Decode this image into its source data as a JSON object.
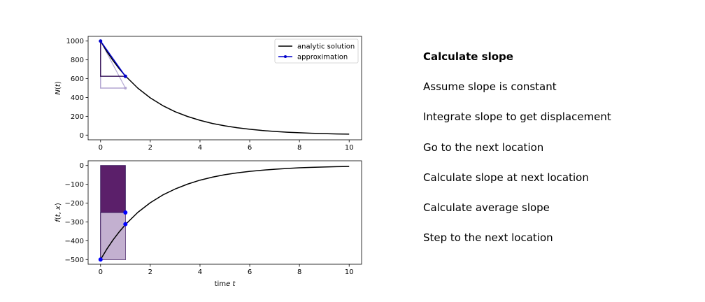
{
  "chart_data": [
    {
      "type": "line",
      "title": "",
      "xlabel": "",
      "ylabel": "N(t)",
      "xlim": [
        -0.5,
        10.5
      ],
      "ylim": [
        -50,
        1050
      ],
      "xticks": [
        0,
        2,
        4,
        6,
        8,
        10
      ],
      "yticks": [
        0,
        200,
        400,
        600,
        800,
        1000
      ],
      "grid": false,
      "legend_position": "top-right",
      "legend": [
        "analytic solution",
        "approximation"
      ],
      "series": [
        {
          "name": "analytic solution",
          "color": "#000000",
          "x": [
            0,
            0.25,
            0.5,
            0.75,
            1,
            1.5,
            2,
            2.5,
            3,
            3.5,
            4,
            4.5,
            5,
            5.5,
            6,
            6.5,
            7,
            7.5,
            8,
            8.5,
            9,
            9.5,
            10
          ],
          "y": [
            1000,
            890,
            793,
            706,
            629,
            499,
            396,
            314,
            249,
            198,
            157,
            124,
            99,
            78,
            62,
            49,
            39,
            31,
            25,
            20,
            16,
            12,
            10
          ]
        },
        {
          "name": "approximation",
          "color": "#0000cc",
          "x": [
            0,
            1
          ],
          "y": [
            1000,
            625
          ]
        }
      ],
      "annotations": {
        "slope_step_1": {
          "x": [
            0,
            0,
            1
          ],
          "y": [
            1000,
            500,
            500
          ],
          "tip": [
            1,
            500
          ],
          "color": "#b3a6d2"
        },
        "slope_step_2": {
          "x": [
            0,
            0,
            1
          ],
          "y": [
            1000,
            625,
            625
          ],
          "color": "#3c1a5e"
        }
      }
    },
    {
      "type": "line",
      "title": "",
      "xlabel": "time t",
      "ylabel": "f(t, x)",
      "xlim": [
        -0.5,
        10.5
      ],
      "ylim": [
        -525,
        25
      ],
      "xticks": [
        0,
        2,
        4,
        6,
        8,
        10
      ],
      "yticks": [
        -500,
        -400,
        -300,
        -200,
        -100,
        0
      ],
      "grid": false,
      "series": [
        {
          "name": "analytic solution",
          "color": "#000000",
          "x": [
            0,
            0.25,
            0.5,
            0.75,
            1,
            1.5,
            2,
            2.5,
            3,
            3.5,
            4,
            4.5,
            5,
            5.5,
            6,
            6.5,
            7,
            7.5,
            8,
            8.5,
            9,
            9.5,
            10
          ],
          "y": [
            -500,
            -445,
            -396,
            -353,
            -314,
            -249,
            -198,
            -157,
            -125,
            -99,
            -78,
            -62,
            -49,
            -39,
            -31,
            -25,
            -20,
            -16,
            -12,
            -10,
            -8,
            -6,
            -5
          ]
        }
      ],
      "points": [
        {
          "x": 0,
          "y": -500
        },
        {
          "x": 1,
          "y": -312
        },
        {
          "x": 1,
          "y": -250
        }
      ],
      "regions": {
        "rect_dark": {
          "x": [
            0,
            1
          ],
          "y": [
            -500,
            0
          ],
          "color": "#5b1f6a"
        },
        "rect_light": {
          "x": [
            0,
            1
          ],
          "y": [
            -500,
            -250
          ],
          "color": "#c3b0d0"
        }
      },
      "point_color": "#0000ff"
    }
  ],
  "steps": {
    "items": [
      "Calculate slope",
      "Assume slope is constant",
      "Integrate slope to get displacement",
      "Go to the next location",
      "Calculate slope at next location",
      "Calculate average slope",
      "Step to the next location"
    ],
    "active_index": 0
  }
}
